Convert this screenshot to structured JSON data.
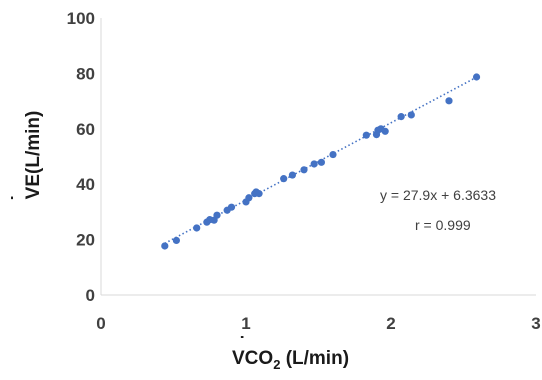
{
  "chart_data": {
    "type": "scatter",
    "xlabel": {
      "dot": "˙",
      "base": "VCO",
      "sub": "2",
      "rest": " (L/min)"
    },
    "ylabel": {
      "dot": "˙",
      "base": "VE",
      "rest": "(L/min)"
    },
    "xlim": [
      0,
      3
    ],
    "ylim": [
      0,
      100
    ],
    "xticks": [
      "0",
      "1",
      "2",
      "3"
    ],
    "yticks": [
      "0",
      "20",
      "40",
      "60",
      "80",
      "100"
    ],
    "grid": false,
    "marker_color": "#4472C4",
    "trendline": {
      "slope": 27.9,
      "intercept": 6.3633,
      "style": "dotted",
      "color": "#4472C4",
      "x_range": [
        0.44,
        2.59
      ]
    },
    "equation_text": "y = 27.9x + 6.3633",
    "r_text": "r = 0.999",
    "points": [
      [
        0.44,
        17.7
      ],
      [
        0.52,
        19.7
      ],
      [
        0.66,
        24.2
      ],
      [
        0.73,
        26.3
      ],
      [
        0.75,
        27.2
      ],
      [
        0.78,
        27.0
      ],
      [
        0.8,
        28.8
      ],
      [
        0.87,
        30.6
      ],
      [
        0.9,
        31.7
      ],
      [
        1.0,
        33.6
      ],
      [
        1.02,
        35.1
      ],
      [
        1.06,
        36.6
      ],
      [
        1.07,
        37.2
      ],
      [
        1.09,
        36.6
      ],
      [
        1.26,
        42.0
      ],
      [
        1.32,
        43.3
      ],
      [
        1.4,
        45.2
      ],
      [
        1.47,
        47.3
      ],
      [
        1.52,
        47.9
      ],
      [
        1.6,
        50.7
      ],
      [
        1.83,
        57.7
      ],
      [
        1.9,
        57.9
      ],
      [
        1.91,
        59.5
      ],
      [
        1.93,
        60.0
      ],
      [
        1.96,
        59.1
      ],
      [
        2.07,
        64.4
      ],
      [
        2.14,
        65.0
      ],
      [
        2.4,
        70.1
      ],
      [
        2.59,
        78.7
      ]
    ]
  }
}
